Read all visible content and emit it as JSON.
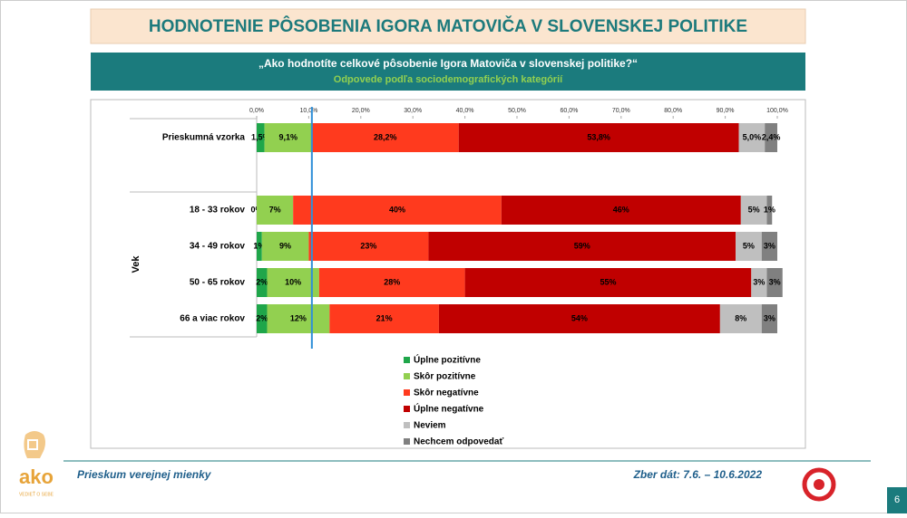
{
  "header": {
    "title": "HODNOTENIE PÔSOBENIA IGORA MATOVIČA V SLOVENSKEJ POLITIKE"
  },
  "subheader": {
    "question": "„Ako hodnotíte celkové pôsobenie Igora Matoviča v slovenskej politike?“",
    "subtitle": "Odpovede podľa sociodemografických kategórií"
  },
  "chart_data": {
    "type": "stacked-bar",
    "orientation": "horizontal",
    "categories": [
      "Prieskumná vzorka",
      "18 - 33 rokov",
      "34 - 49 rokov",
      "50 - 65 rokov",
      "66 a viac rokov"
    ],
    "category_group": "Vek",
    "xlim": [
      0,
      100
    ],
    "xticks": [
      {
        "value": 0,
        "label": "0,0%"
      },
      {
        "value": 10,
        "label": "10,0%"
      },
      {
        "value": 20,
        "label": "20,0%"
      },
      {
        "value": 30,
        "label": "30,0%"
      },
      {
        "value": 40,
        "label": "40,0%"
      },
      {
        "value": 50,
        "label": "50,0%"
      },
      {
        "value": 60,
        "label": "60,0%"
      },
      {
        "value": 70,
        "label": "70,0%"
      },
      {
        "value": 80,
        "label": "80,0%"
      },
      {
        "value": 90,
        "label": "90,0%"
      },
      {
        "value": 100,
        "label": "100,0%"
      }
    ],
    "reference_line": 10.6,
    "reference_color": "#2f8fd8",
    "legend": "bottom",
    "series": [
      {
        "name": "Úplne pozitívne",
        "color": "#1fa64a",
        "values": [
          1.5,
          0,
          1,
          2,
          2
        ],
        "value_labels": [
          "1,5%",
          "0%",
          "1%",
          "2%",
          "2%"
        ]
      },
      {
        "name": "Skôr pozitívne",
        "color": "#92d050",
        "values": [
          9.1,
          7,
          9,
          10,
          12
        ],
        "value_labels": [
          "9,1%",
          "7%",
          "9%",
          "10%",
          "12%"
        ]
      },
      {
        "name": "Skôr negatívne",
        "color": "#ff3a1e",
        "values": [
          28.2,
          40,
          23,
          28,
          21
        ],
        "value_labels": [
          "28,2%",
          "40%",
          "23%",
          "28%",
          "21%"
        ]
      },
      {
        "name": "Úplne negatívne",
        "color": "#c00000",
        "values": [
          53.8,
          46,
          59,
          55,
          54
        ],
        "value_labels": [
          "53,8%",
          "46%",
          "59%",
          "55%",
          "54%"
        ]
      },
      {
        "name": "Neviem",
        "color": "#bfbfbf",
        "values": [
          5.0,
          5,
          5,
          3,
          8
        ],
        "value_labels": [
          "5,0%",
          "5%",
          "5%",
          "3%",
          "8%"
        ]
      },
      {
        "name": "Nechcem odpovedať",
        "color": "#808080",
        "values": [
          2.4,
          1,
          3,
          3,
          3
        ],
        "value_labels": [
          "2,4%",
          "1%",
          "3%",
          "3%",
          "3%"
        ]
      }
    ]
  },
  "footer": {
    "left": "Prieskum verejnej mienky",
    "right": "Zber dát: 7.6. – 10.6.2022",
    "logo": "ako",
    "logo_tagline": "VEDIEŤ O SEBE",
    "page": "6"
  }
}
